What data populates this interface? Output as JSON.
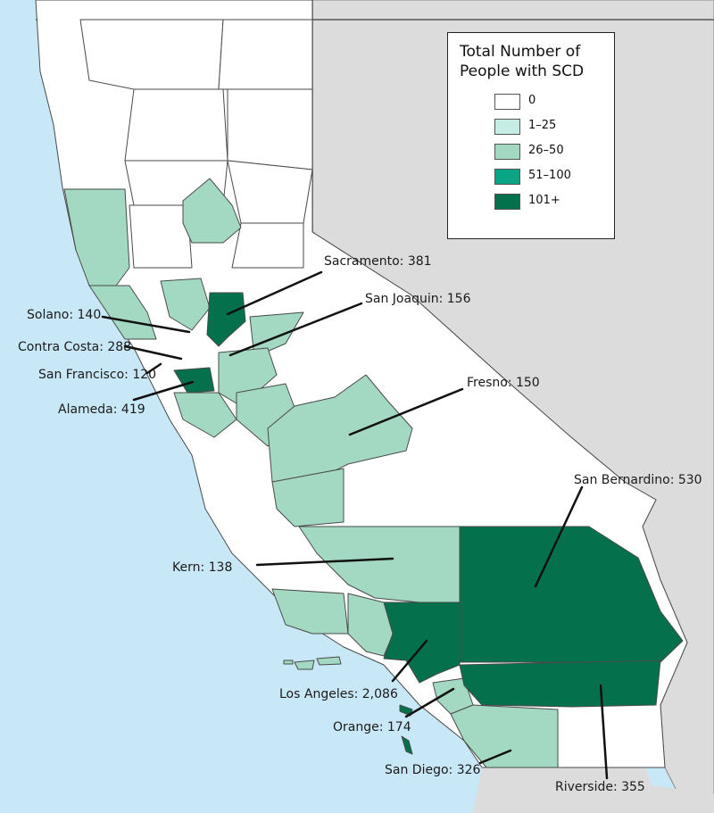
{
  "legend": {
    "title_line1": "Total Number of",
    "title_line2": "People with SCD",
    "items": [
      {
        "label": "0",
        "color": "#ffffff"
      },
      {
        "label": "1–25",
        "color": "#c5ede6"
      },
      {
        "label": "26–50",
        "color": "#a3d9c2"
      },
      {
        "label": "51–100",
        "color": "#0aa585"
      },
      {
        "label": "101+",
        "color": "#04704c"
      }
    ]
  },
  "colors": {
    "water": "#c8e8f7",
    "other_states": "#dcdcdc",
    "county_zero": "#ffffff",
    "county_mid": "#a3d9c2",
    "county_high": "#04704c"
  },
  "counties": [
    {
      "name": "Sacramento",
      "count": "381",
      "label": "Sacramento: 381"
    },
    {
      "name": "San Joaquin",
      "count": "156",
      "label": "San Joaquin: 156"
    },
    {
      "name": "Solano",
      "count": "140",
      "label": "Solano: 140"
    },
    {
      "name": "Contra Costa",
      "count": "288",
      "label": "Contra Costa: 288"
    },
    {
      "name": "San Francisco",
      "count": "120",
      "label": "San Francisco: 120"
    },
    {
      "name": "Alameda",
      "count": "419",
      "label": "Alameda: 419"
    },
    {
      "name": "Fresno",
      "count": "150",
      "label": "Fresno: 150"
    },
    {
      "name": "San Bernardino",
      "count": "530",
      "label": "San Bernardino: 530"
    },
    {
      "name": "Kern",
      "count": "138",
      "label": "Kern: 138"
    },
    {
      "name": "Los Angeles",
      "count": "2,086",
      "label": "Los Angeles: 2,086"
    },
    {
      "name": "Orange",
      "count": "174",
      "label": "Orange: 174"
    },
    {
      "name": "San Diego",
      "count": "326",
      "label": "San Diego: 326"
    },
    {
      "name": "Riverside",
      "count": "355",
      "label": "Riverside: 355"
    }
  ]
}
